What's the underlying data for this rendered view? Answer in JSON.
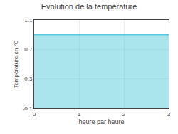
{
  "chart_data": {
    "type": "area",
    "title": "Evolution de la température",
    "xlabel": "heure par heure",
    "ylabel": "Température en °C",
    "x": [
      0,
      3
    ],
    "values": [
      0.9,
      0.9
    ],
    "color": "#55ccdd",
    "xlim": [
      0,
      3
    ],
    "ylim": [
      -0.1,
      1.1
    ],
    "xticks": [
      0,
      1,
      2,
      3
    ],
    "yticks": [
      -0.1,
      0.3,
      0.7,
      1.1
    ],
    "grid": true
  }
}
